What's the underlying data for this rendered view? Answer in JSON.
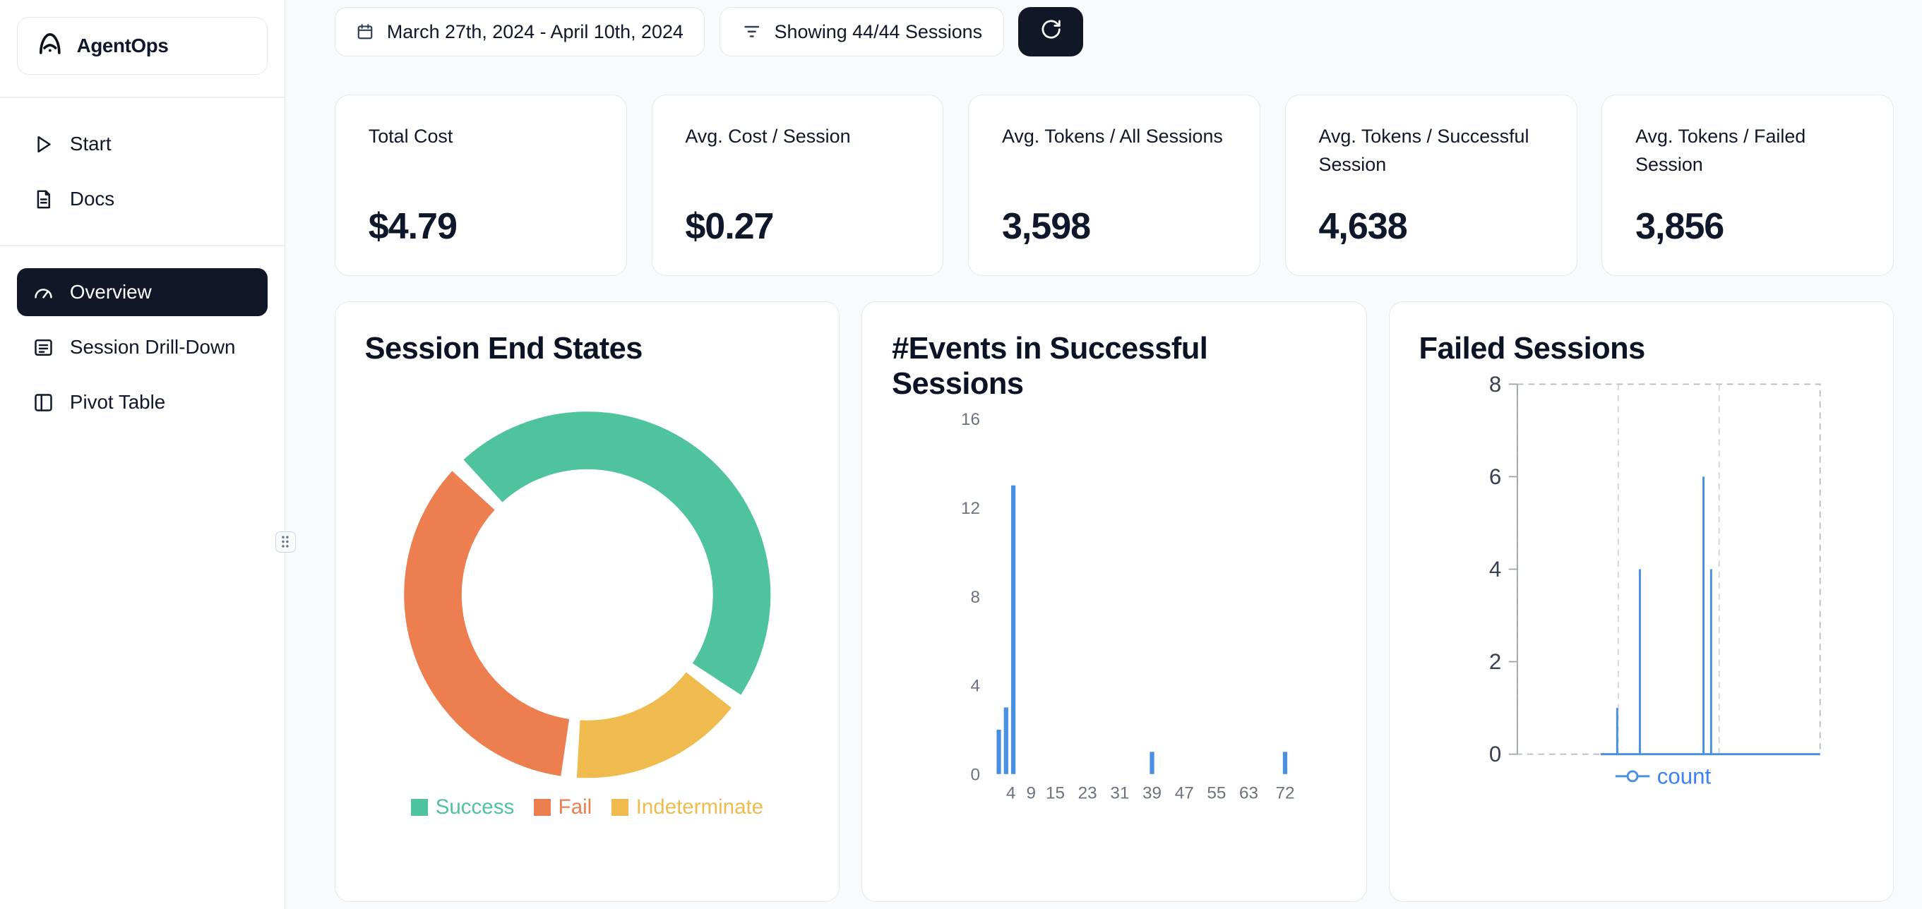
{
  "sidebar": {
    "logo_text": "AgentOps",
    "nav_top": [
      {
        "label": "Start",
        "icon": "play-icon"
      },
      {
        "label": "Docs",
        "icon": "docs-icon"
      }
    ],
    "nav_main": [
      {
        "label": "Overview",
        "icon": "gauge-icon",
        "active": true
      },
      {
        "label": "Session Drill-Down",
        "icon": "drilldown-icon",
        "active": false
      },
      {
        "label": "Pivot Table",
        "icon": "pivot-icon",
        "active": false
      }
    ]
  },
  "toolbar": {
    "date_range": "March 27th, 2024 - April 10th, 2024",
    "sessions_filter": "Showing 44/44 Sessions"
  },
  "stats": [
    {
      "label": "Total Cost",
      "value": "$4.79"
    },
    {
      "label": "Avg. Cost / Session",
      "value": "$0.27"
    },
    {
      "label": "Avg. Tokens / All Sessions",
      "value": "3,598"
    },
    {
      "label": "Avg. Tokens / Successful Session",
      "value": "4,638"
    },
    {
      "label": "Avg. Tokens / Failed Session",
      "value": "3,856"
    }
  ],
  "chart_data": [
    {
      "type": "pie",
      "donut": true,
      "title": "Session End States",
      "labels": [
        "Success",
        "Fail",
        "Indeterminate"
      ],
      "values": [
        48,
        36,
        16
      ],
      "values_are_percent": true,
      "colors": [
        "#4fc39d",
        "#ec7e50",
        "#efbb4e"
      ],
      "clockwise_order": [
        "Success",
        "Indeterminate",
        "Fail"
      ],
      "start_angle_deg": 135,
      "legend_position": "bottom"
    },
    {
      "type": "bar",
      "title": "#Events in Successful Sessions",
      "xlabel": "",
      "ylabel": "",
      "x_ticks": [
        4,
        9,
        15,
        23,
        31,
        39,
        47,
        55,
        63,
        72
      ],
      "xlim": [
        0,
        76
      ],
      "y_ticks": [
        0,
        4,
        8,
        12,
        16
      ],
      "ylim": [
        0,
        16
      ],
      "bars": [
        {
          "x": 1,
          "count": 2
        },
        {
          "x": 2.8,
          "count": 3
        },
        {
          "x": 4.6,
          "count": 13
        },
        {
          "x": 39,
          "count": 1
        },
        {
          "x": 72,
          "count": 1
        }
      ],
      "bar_color": "#4a90e2",
      "grid": false
    },
    {
      "type": "line",
      "title": "Failed Sessions",
      "y_ticks": [
        0,
        2,
        4,
        6,
        8
      ],
      "ylim": [
        0,
        8
      ],
      "series": [
        {
          "name": "count",
          "color": "#4a90e2"
        }
      ],
      "baseline_start_frac": 0.275,
      "spikes": [
        {
          "x_frac": 0.33,
          "value": 1
        },
        {
          "x_frac": 0.405,
          "value": 4
        },
        {
          "x_frac": 0.615,
          "value": 6
        },
        {
          "x_frac": 0.64,
          "value": 4
        }
      ],
      "grid": "dashed",
      "legend_position": "bottom"
    }
  ],
  "colors": {
    "accent_dark": "#101828",
    "success": "#4fc39d",
    "fail": "#ec7e50",
    "indeterminate": "#efbb4e",
    "chart_blue": "#4a90e2",
    "background": "#f8fafc",
    "card_border": "#e2e8f0"
  }
}
